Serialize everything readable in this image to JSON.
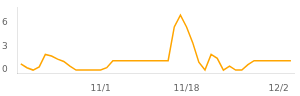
{
  "chart_data": {
    "type": "line",
    "x": [
      0,
      1,
      2,
      3,
      4,
      5,
      6,
      7,
      8,
      9,
      10,
      11,
      12,
      13,
      14,
      15,
      16,
      17,
      18,
      19,
      20,
      21,
      22,
      23,
      24,
      25,
      26,
      27,
      28,
      29,
      30,
      31,
      32,
      33,
      34,
      35,
      36,
      37,
      38,
      39,
      40,
      41,
      42,
      43,
      44
    ],
    "values": [
      0.8,
      0.3,
      0.0,
      0.4,
      2.0,
      1.8,
      1.4,
      1.1,
      0.5,
      0.0,
      0.0,
      0.0,
      0.0,
      0.0,
      0.3,
      1.2,
      1.2,
      1.2,
      1.2,
      1.2,
      1.2,
      1.2,
      1.2,
      1.2,
      1.2,
      5.5,
      7.0,
      5.5,
      3.5,
      1.0,
      0.0,
      2.0,
      1.5,
      0.0,
      0.5,
      0.0,
      0.0,
      0.7,
      1.2,
      1.2,
      1.2,
      1.2,
      1.2,
      1.2,
      1.2
    ],
    "color": "#FFA500",
    "xlim": [
      -0.5,
      44.5
    ],
    "xticks": [
      {
        "value": 13,
        "label": "11/1"
      },
      {
        "value": 27,
        "label": "11/18"
      },
      {
        "value": 42,
        "label": "12/2"
      }
    ],
    "ylim": [
      -0.4,
      8.0
    ],
    "yticks": [
      0,
      3,
      6
    ],
    "grid": false
  }
}
